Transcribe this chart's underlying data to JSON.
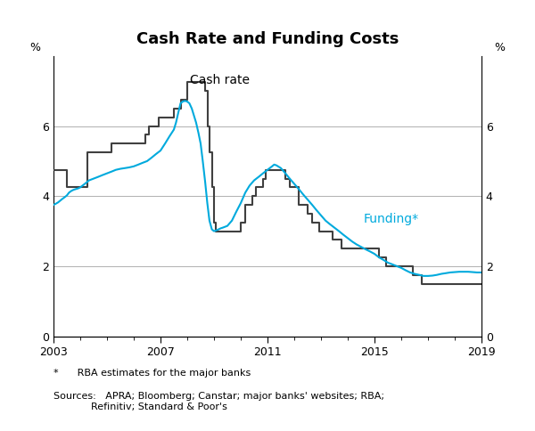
{
  "title": "Cash Rate and Funding Costs",
  "ylabel_left": "%",
  "ylabel_right": "%",
  "ylim": [
    0,
    8
  ],
  "yticks": [
    0,
    2,
    4,
    6
  ],
  "xlim_start": 2003.0,
  "xlim_end": 2019.0,
  "xticks": [
    2003,
    2007,
    2011,
    2015,
    2019
  ],
  "footnote_star": "*      RBA estimates for the major banks",
  "footnote_sources": "Sources:   APRA; Bloomberg; Canstar; major banks' websites; RBA;\n            Refinitiv; Standard & Poor's",
  "cash_rate_label": "Cash rate",
  "funding_label": "Funding*",
  "cash_rate_color": "#404040",
  "funding_color": "#00AADD",
  "background_color": "#ffffff",
  "cash_rate": [
    [
      2003.0,
      4.75
    ],
    [
      2003.5,
      4.25
    ],
    [
      2003.83,
      4.25
    ],
    [
      2004.25,
      5.25
    ],
    [
      2004.83,
      5.25
    ],
    [
      2005.17,
      5.5
    ],
    [
      2005.58,
      5.5
    ],
    [
      2006.42,
      5.75
    ],
    [
      2006.58,
      6.0
    ],
    [
      2006.75,
      6.0
    ],
    [
      2006.92,
      6.25
    ],
    [
      2007.42,
      6.25
    ],
    [
      2007.5,
      6.5
    ],
    [
      2007.67,
      6.5
    ],
    [
      2007.75,
      6.75
    ],
    [
      2008.0,
      7.25
    ],
    [
      2008.17,
      7.25
    ],
    [
      2008.67,
      7.0
    ],
    [
      2008.75,
      6.0
    ],
    [
      2008.83,
      5.25
    ],
    [
      2008.92,
      4.25
    ],
    [
      2009.0,
      3.25
    ],
    [
      2009.08,
      3.0
    ],
    [
      2009.42,
      3.0
    ],
    [
      2010.0,
      3.25
    ],
    [
      2010.17,
      3.75
    ],
    [
      2010.42,
      4.0
    ],
    [
      2010.58,
      4.25
    ],
    [
      2010.83,
      4.5
    ],
    [
      2010.92,
      4.75
    ],
    [
      2011.0,
      4.75
    ],
    [
      2011.67,
      4.5
    ],
    [
      2011.83,
      4.25
    ],
    [
      2012.0,
      4.25
    ],
    [
      2012.17,
      3.75
    ],
    [
      2012.5,
      3.5
    ],
    [
      2012.67,
      3.25
    ],
    [
      2012.92,
      3.0
    ],
    [
      2013.42,
      2.75
    ],
    [
      2013.75,
      2.5
    ],
    [
      2015.17,
      2.25
    ],
    [
      2015.42,
      2.0
    ],
    [
      2016.42,
      1.75
    ],
    [
      2016.75,
      1.5
    ],
    [
      2019.0,
      1.5
    ]
  ],
  "funding": [
    [
      2003.0,
      3.75
    ],
    [
      2003.08,
      3.78
    ],
    [
      2003.17,
      3.82
    ],
    [
      2003.25,
      3.87
    ],
    [
      2003.33,
      3.92
    ],
    [
      2003.42,
      3.97
    ],
    [
      2003.5,
      4.02
    ],
    [
      2003.58,
      4.1
    ],
    [
      2003.67,
      4.15
    ],
    [
      2003.75,
      4.18
    ],
    [
      2003.83,
      4.2
    ],
    [
      2003.92,
      4.22
    ],
    [
      2004.0,
      4.25
    ],
    [
      2004.17,
      4.35
    ],
    [
      2004.33,
      4.45
    ],
    [
      2004.5,
      4.5
    ],
    [
      2004.67,
      4.55
    ],
    [
      2004.83,
      4.6
    ],
    [
      2005.0,
      4.65
    ],
    [
      2005.17,
      4.7
    ],
    [
      2005.33,
      4.75
    ],
    [
      2005.5,
      4.78
    ],
    [
      2005.67,
      4.8
    ],
    [
      2005.83,
      4.82
    ],
    [
      2006.0,
      4.85
    ],
    [
      2006.17,
      4.9
    ],
    [
      2006.33,
      4.95
    ],
    [
      2006.5,
      5.0
    ],
    [
      2006.67,
      5.1
    ],
    [
      2006.83,
      5.2
    ],
    [
      2007.0,
      5.3
    ],
    [
      2007.17,
      5.5
    ],
    [
      2007.33,
      5.7
    ],
    [
      2007.5,
      5.9
    ],
    [
      2007.58,
      6.1
    ],
    [
      2007.67,
      6.4
    ],
    [
      2007.75,
      6.65
    ],
    [
      2007.83,
      6.7
    ],
    [
      2007.92,
      6.72
    ],
    [
      2008.0,
      6.7
    ],
    [
      2008.08,
      6.65
    ],
    [
      2008.17,
      6.5
    ],
    [
      2008.25,
      6.3
    ],
    [
      2008.33,
      6.1
    ],
    [
      2008.42,
      5.8
    ],
    [
      2008.5,
      5.5
    ],
    [
      2008.58,
      5.0
    ],
    [
      2008.67,
      4.4
    ],
    [
      2008.75,
      3.8
    ],
    [
      2008.83,
      3.3
    ],
    [
      2008.92,
      3.05
    ],
    [
      2009.0,
      3.0
    ],
    [
      2009.08,
      3.02
    ],
    [
      2009.17,
      3.05
    ],
    [
      2009.25,
      3.08
    ],
    [
      2009.33,
      3.1
    ],
    [
      2009.5,
      3.15
    ],
    [
      2009.67,
      3.3
    ],
    [
      2009.83,
      3.55
    ],
    [
      2010.0,
      3.8
    ],
    [
      2010.17,
      4.1
    ],
    [
      2010.33,
      4.3
    ],
    [
      2010.5,
      4.45
    ],
    [
      2010.67,
      4.55
    ],
    [
      2010.83,
      4.65
    ],
    [
      2011.0,
      4.75
    ],
    [
      2011.17,
      4.85
    ],
    [
      2011.25,
      4.9
    ],
    [
      2011.33,
      4.88
    ],
    [
      2011.5,
      4.8
    ],
    [
      2011.67,
      4.65
    ],
    [
      2011.83,
      4.5
    ],
    [
      2012.0,
      4.35
    ],
    [
      2012.17,
      4.2
    ],
    [
      2012.33,
      4.05
    ],
    [
      2012.5,
      3.9
    ],
    [
      2012.67,
      3.75
    ],
    [
      2012.83,
      3.6
    ],
    [
      2013.0,
      3.45
    ],
    [
      2013.17,
      3.3
    ],
    [
      2013.33,
      3.2
    ],
    [
      2013.5,
      3.1
    ],
    [
      2013.67,
      3.0
    ],
    [
      2013.83,
      2.9
    ],
    [
      2014.0,
      2.8
    ],
    [
      2014.17,
      2.7
    ],
    [
      2014.33,
      2.62
    ],
    [
      2014.5,
      2.55
    ],
    [
      2014.67,
      2.48
    ],
    [
      2014.83,
      2.42
    ],
    [
      2015.0,
      2.35
    ],
    [
      2015.17,
      2.25
    ],
    [
      2015.33,
      2.18
    ],
    [
      2015.5,
      2.1
    ],
    [
      2015.67,
      2.05
    ],
    [
      2015.83,
      2.0
    ],
    [
      2016.0,
      1.95
    ],
    [
      2016.17,
      1.88
    ],
    [
      2016.33,
      1.82
    ],
    [
      2016.5,
      1.78
    ],
    [
      2016.67,
      1.75
    ],
    [
      2016.83,
      1.72
    ],
    [
      2017.0,
      1.72
    ],
    [
      2017.17,
      1.73
    ],
    [
      2017.33,
      1.75
    ],
    [
      2017.5,
      1.78
    ],
    [
      2017.67,
      1.8
    ],
    [
      2017.83,
      1.82
    ],
    [
      2018.0,
      1.83
    ],
    [
      2018.17,
      1.84
    ],
    [
      2018.33,
      1.84
    ],
    [
      2018.5,
      1.84
    ],
    [
      2018.67,
      1.83
    ],
    [
      2018.83,
      1.82
    ],
    [
      2019.0,
      1.82
    ]
  ]
}
